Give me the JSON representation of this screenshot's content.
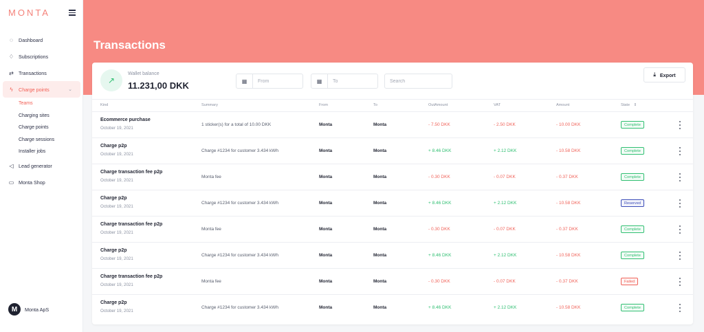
{
  "app": {
    "logo": "MONTA"
  },
  "sidebar": {
    "items": [
      {
        "label": "Dashboard",
        "icon": "dashboard-icon"
      },
      {
        "label": "Subscriptions",
        "icon": "lightbulb-icon"
      },
      {
        "label": "Transactions",
        "icon": "transfer-icon"
      },
      {
        "label": "Charge points",
        "icon": "bolt-icon"
      },
      {
        "label": "Lead generator",
        "icon": "megaphone-icon"
      },
      {
        "label": "Monta Shop",
        "icon": "shop-icon"
      }
    ],
    "subitems": [
      "Teams",
      "Charging sites",
      "Charge points",
      "Charge sessions",
      "Installer jobs"
    ],
    "account": {
      "name": "Monta ApS",
      "avatar_letter": "M"
    }
  },
  "page": {
    "title": "Transactions"
  },
  "toolbar": {
    "wallet_label": "Wallet balance",
    "wallet_value": "11.231,00 DKK",
    "from_placeholder": "From",
    "to_placeholder": "To",
    "search_placeholder": "Search",
    "export_label": "Export"
  },
  "table": {
    "headers": [
      "Kind",
      "Summary",
      "From",
      "To",
      "OutAmount",
      "VAT",
      "Amount",
      "State"
    ],
    "rows": [
      {
        "kind": "Ecommerce purchase",
        "date": "October 19, 2021",
        "summary": "1 sticker(s) for a total of 10.00 DKK",
        "from": "Monta",
        "to": "Monta",
        "outamount": "- 7.50 DKK",
        "vat": "- 2.50 DKK",
        "amount": "- 10.00 DKK",
        "state": "Complete"
      },
      {
        "kind": "Charge p2p",
        "date": "October 19, 2021",
        "summary": "Charge #1234 for customer 3.434 kWh",
        "from": "Monta",
        "to": "Monta",
        "outamount": "+ 8.46 DKK",
        "vat": "+ 2.12 DKK",
        "amount": "- 10.58 DKK",
        "state": "Complete"
      },
      {
        "kind": "Charge transaction fee p2p",
        "date": "October 19, 2021",
        "summary": "Monta fee",
        "from": "Monta",
        "to": "Monta",
        "outamount": "- 0.30 DKK",
        "vat": "- 0.07 DKK",
        "amount": "- 0.37 DKK",
        "state": "Complete"
      },
      {
        "kind": "Charge p2p",
        "date": "October 19, 2021",
        "summary": "Charge #1234 for customer 3.434 kWh",
        "from": "Monta",
        "to": "Monta",
        "outamount": "+ 8.46 DKK",
        "vat": "+ 2.12 DKK",
        "amount": "- 10.58 DKK",
        "state": "Reserved"
      },
      {
        "kind": "Charge transaction fee p2p",
        "date": "October 19, 2021",
        "summary": "Monta fee",
        "from": "Monta",
        "to": "Monta",
        "outamount": "- 0.30 DKK",
        "vat": "- 0.07 DKK",
        "amount": "- 0.37 DKK",
        "state": "Complete"
      },
      {
        "kind": "Charge p2p",
        "date": "October 19, 2021",
        "summary": "Charge #1234 for customer 3.434 kWh",
        "from": "Monta",
        "to": "Monta",
        "outamount": "+ 8.46 DKK",
        "vat": "+ 2.12 DKK",
        "amount": "- 10.58 DKK",
        "state": "Complete"
      },
      {
        "kind": "Charge transaction fee p2p",
        "date": "October 19, 2021",
        "summary": "Monta fee",
        "from": "Monta",
        "to": "Monta",
        "outamount": "- 0.30 DKK",
        "vat": "- 0.07 DKK",
        "amount": "- 0.37 DKK",
        "state": "Failed"
      },
      {
        "kind": "Charge p2p",
        "date": "October 19, 2021",
        "summary": "Charge #1234 for customer 3.434 kWh",
        "from": "Monta",
        "to": "Monta",
        "outamount": "+ 8.46 DKK",
        "vat": "+ 2.12 DKK",
        "amount": "- 10.58 DKK",
        "state": "Complete"
      }
    ]
  },
  "colors": {
    "accent": "#f78a83",
    "positive": "#2fbf71",
    "negative": "#f0635a",
    "reserved": "#3b4cb8"
  }
}
